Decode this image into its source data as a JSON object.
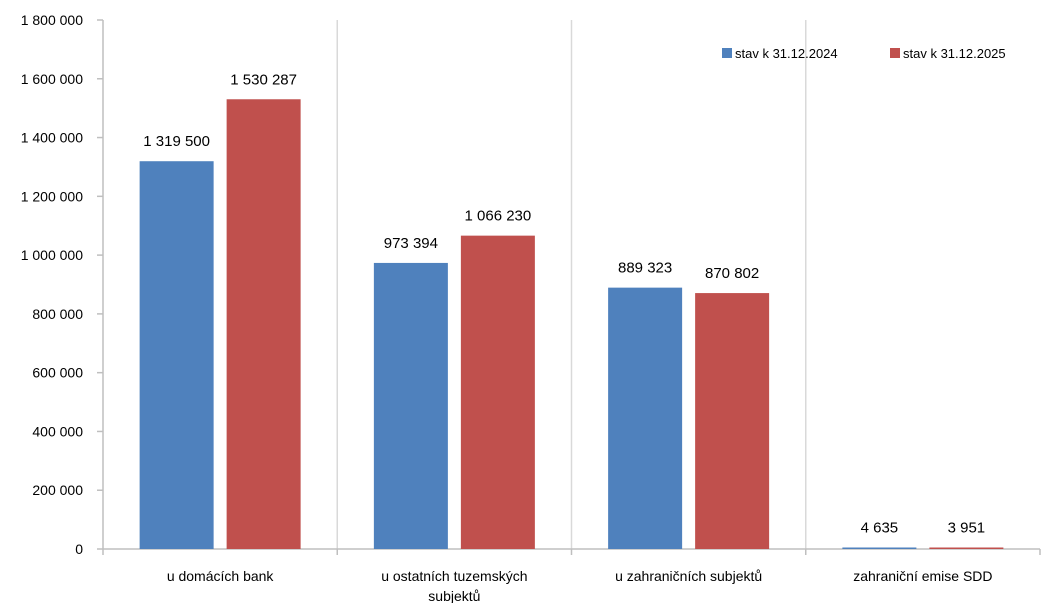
{
  "chart_data": {
    "type": "bar",
    "categories": [
      [
        "u domácích bank"
      ],
      [
        "u ostatních tuzemských",
        "subjektů"
      ],
      [
        "u zahraničních subjektů"
      ],
      [
        "zahraniční emise SDD"
      ]
    ],
    "series": [
      {
        "name": "stav k 31.12.2024",
        "color": "#4f81bd",
        "values": [
          1319500,
          973394,
          889323,
          4635
        ],
        "labels": [
          "1 319 500",
          "973 394",
          "889 323",
          "4 635"
        ]
      },
      {
        "name": "stav k 31.12.2025",
        "color": "#c0504d",
        "values": [
          1530287,
          1066230,
          870802,
          3951
        ],
        "labels": [
          "1 530 287",
          "1 066 230",
          "870 802",
          "3 951"
        ]
      }
    ],
    "ylim": [
      0,
      1800000
    ],
    "yticks": [
      0,
      200000,
      400000,
      600000,
      800000,
      1000000,
      1200000,
      1400000,
      1600000,
      1800000
    ],
    "ytick_labels": [
      "0",
      "200 000",
      "400 000",
      "600 000",
      "800 000",
      "1 000 000",
      "1 200 000",
      "1 400 000",
      "1 600 000",
      "1 800 000"
    ],
    "grid": "vertical category separators",
    "legend": "top-right",
    "title": "",
    "xlabel": "",
    "ylabel": ""
  }
}
